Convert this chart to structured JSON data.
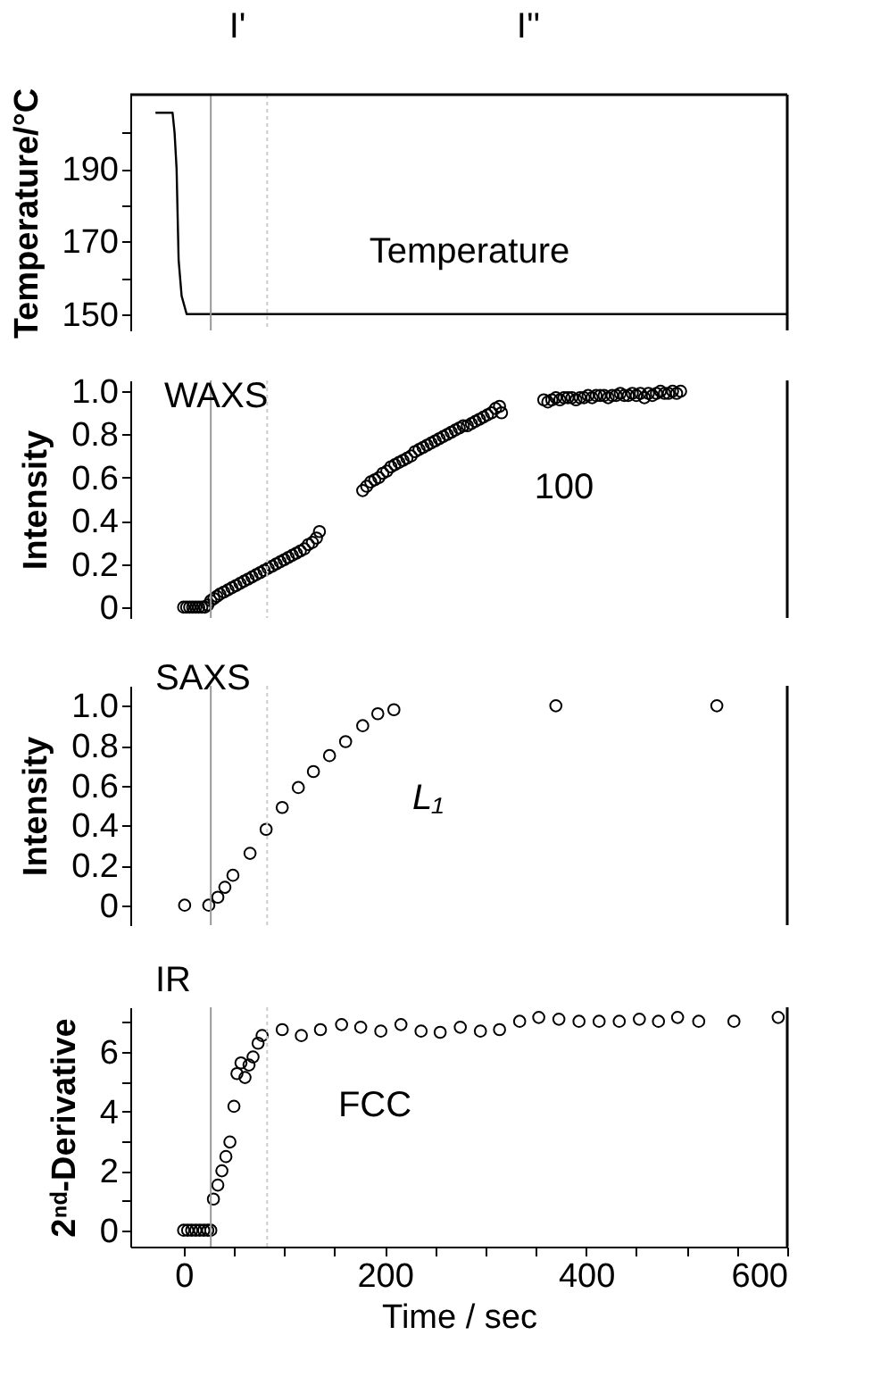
{
  "chart_data": [
    {
      "type": "line",
      "ylabel": "Temperature/°C",
      "xlim": [
        -53,
        600
      ],
      "ylim": [
        145.5,
        210.5
      ],
      "yticks": [
        150,
        {
          "value": 160,
          "label": null
        },
        170,
        {
          "value": 180,
          "label": null
        },
        190,
        {
          "value": 200,
          "label": null
        }
      ],
      "tick_labels": "y",
      "marker": "none",
      "x": [
        -28,
        -11,
        -9,
        -7,
        -5,
        -2,
        3,
        600
      ],
      "series": [
        {
          "color": "#000000",
          "values": [
            205.5,
            205.5,
            200,
            190,
            165,
            155,
            150,
            150
          ]
        }
      ],
      "ref_lines": [
        {
          "axis": "x",
          "value": 27,
          "color": "#999999",
          "line_style": "solid"
        },
        {
          "axis": "x",
          "value": 83,
          "color": "#cccccc",
          "line_style": "dotted"
        }
      ],
      "annotations": [
        "Temperature",
        "I'",
        "I''"
      ]
    },
    {
      "type": "scatter",
      "ylabel": "Intensity",
      "xlim": [
        -53,
        600
      ],
      "ylim": [
        -0.05,
        1.05
      ],
      "yticks": [
        0,
        {
          "value": 0.2,
          "label": "0.2"
        },
        {
          "value": 0.4,
          "label": "0.4"
        },
        {
          "value": 0.6,
          "label": "0.6"
        },
        {
          "value": 0.8,
          "label": "0.8"
        },
        {
          "value": 1,
          "label": "1.0"
        }
      ],
      "tick_labels": "y",
      "marker": "circle",
      "x": [
        0,
        3,
        6,
        9,
        12,
        15,
        18,
        21,
        24,
        27,
        30,
        33,
        36,
        40,
        44,
        48,
        52,
        56,
        60,
        64,
        68,
        72,
        76,
        80,
        84,
        88,
        92,
        96,
        100,
        104,
        108,
        112,
        116,
        120,
        124,
        128,
        132,
        135,
        178,
        182,
        186,
        190,
        194,
        198,
        202,
        206,
        210,
        214,
        218,
        222,
        226,
        230,
        234,
        238,
        242,
        246,
        250,
        254,
        258,
        262,
        266,
        270,
        274,
        278,
        282,
        286,
        290,
        294,
        298,
        302,
        306,
        310,
        314,
        316,
        358,
        362,
        366,
        370,
        374,
        378,
        382,
        386,
        390,
        394,
        398,
        402,
        406,
        410,
        414,
        418,
        422,
        426,
        430,
        434,
        438,
        442,
        446,
        450,
        454,
        458,
        462,
        466,
        470,
        474,
        478,
        482,
        486,
        490,
        494
      ],
      "series": [
        {
          "color": "#000000",
          "values": [
            0,
            0,
            0,
            0,
            0,
            0,
            0,
            0,
            0.01,
            0.03,
            0.04,
            0.05,
            0.06,
            0.07,
            0.08,
            0.09,
            0.1,
            0.11,
            0.12,
            0.13,
            0.14,
            0.15,
            0.16,
            0.17,
            0.18,
            0.19,
            0.2,
            0.21,
            0.22,
            0.23,
            0.24,
            0.25,
            0.26,
            0.27,
            0.29,
            0.3,
            0.32,
            0.35,
            0.54,
            0.56,
            0.58,
            0.59,
            0.6,
            0.62,
            0.63,
            0.65,
            0.66,
            0.67,
            0.68,
            0.69,
            0.7,
            0.72,
            0.73,
            0.74,
            0.75,
            0.76,
            0.77,
            0.78,
            0.79,
            0.8,
            0.81,
            0.82,
            0.83,
            0.84,
            0.84,
            0.85,
            0.86,
            0.87,
            0.88,
            0.89,
            0.9,
            0.92,
            0.93,
            0.9,
            0.96,
            0.95,
            0.96,
            0.97,
            0.96,
            0.97,
            0.97,
            0.97,
            0.96,
            0.97,
            0.97,
            0.98,
            0.97,
            0.98,
            0.98,
            0.98,
            0.97,
            0.98,
            0.98,
            0.99,
            0.98,
            0.98,
            0.99,
            0.98,
            0.99,
            0.97,
            0.99,
            0.98,
            0.99,
            1.0,
            0.99,
            0.99,
            1.0,
            0.99,
            1.0
          ]
        }
      ],
      "ref_lines": [
        {
          "axis": "x",
          "value": 27,
          "color": "#999999",
          "line_style": "solid"
        },
        {
          "axis": "x",
          "value": 83,
          "color": "#cccccc",
          "line_style": "dotted"
        }
      ],
      "annotations": [
        "WAXS",
        "100"
      ]
    },
    {
      "type": "scatter",
      "ylabel": "Intensity",
      "xlim": [
        -53,
        600
      ],
      "ylim": [
        -0.1,
        1.1
      ],
      "yticks": [
        0,
        {
          "value": 0.2,
          "label": "0.2"
        },
        {
          "value": 0.4,
          "label": "0.4"
        },
        {
          "value": 0.6,
          "label": "0.6"
        },
        {
          "value": 0.8,
          "label": "0.8"
        },
        {
          "value": 1,
          "label": "1.0"
        }
      ],
      "tick_labels": "y",
      "marker": "circle",
      "x": [
        1,
        25,
        34,
        41,
        49,
        66,
        82,
        98,
        114,
        129,
        145,
        161,
        178,
        193,
        209,
        370,
        530
      ],
      "series": [
        {
          "color": "#000000",
          "values": [
            0,
            0,
            0.04,
            0.09,
            0.15,
            0.26,
            0.38,
            0.49,
            0.59,
            0.67,
            0.75,
            0.82,
            0.9,
            0.96,
            0.98,
            1.0,
            1.0
          ]
        }
      ],
      "ref_lines": [
        {
          "axis": "x",
          "value": 27,
          "color": "#999999",
          "line_style": "solid"
        },
        {
          "axis": "x",
          "value": 83,
          "color": "#cccccc",
          "line_style": "dotted"
        }
      ],
      "annotations": [
        "SAXS",
        "L₁"
      ]
    },
    {
      "type": "scatter",
      "ylabel": "2ⁿᵈ-Derivative",
      "xlabel": "Time / sec",
      "xlim": [
        -53,
        600
      ],
      "ylim": [
        -0.55,
        7.5
      ],
      "xticks": [
        0,
        {
          "value": 50,
          "label": null
        },
        {
          "value": 100,
          "label": null
        },
        {
          "value": 150,
          "label": null
        },
        200,
        {
          "value": 250,
          "label": null
        },
        {
          "value": 300,
          "label": null
        },
        {
          "value": 350,
          "label": null
        },
        400,
        {
          "value": 450,
          "label": null
        },
        {
          "value": 500,
          "label": null
        },
        {
          "value": 550,
          "label": null
        },
        600
      ],
      "yticks": [
        0,
        {
          "value": 1,
          "label": null
        },
        2,
        {
          "value": 3,
          "label": null
        },
        4,
        {
          "value": 5,
          "label": null
        },
        6,
        {
          "value": 7,
          "label": null
        }
      ],
      "marker": "circle",
      "x": [
        0,
        4,
        8,
        12,
        16,
        20,
        24,
        27,
        29.6,
        34,
        38,
        42,
        46,
        50,
        53,
        57,
        61,
        65,
        69,
        74,
        78,
        98,
        117,
        136,
        157,
        176,
        196,
        216,
        236,
        255,
        275,
        295,
        314,
        334,
        353,
        373,
        393,
        413,
        433,
        453,
        472,
        491,
        512,
        547,
        591
      ],
      "series": [
        {
          "color": "#000000",
          "values": [
            0,
            0,
            0,
            0,
            0,
            0,
            0,
            0,
            1.05,
            1.52,
            2.0,
            2.48,
            2.97,
            4.17,
            5.27,
            5.63,
            5.14,
            5.56,
            5.83,
            6.29,
            6.55,
            6.75,
            6.55,
            6.75,
            6.92,
            6.83,
            6.7,
            6.92,
            6.7,
            6.66,
            6.83,
            6.7,
            6.75,
            7.03,
            7.16,
            7.1,
            7.03,
            7.03,
            7.03,
            7.1,
            7.03,
            7.16,
            7.03,
            7.03,
            7.16
          ]
        }
      ],
      "ref_lines": [
        {
          "axis": "x",
          "value": 27,
          "color": "#999999",
          "line_style": "solid"
        },
        {
          "axis": "x",
          "value": 83,
          "color": "#cccccc",
          "line_style": "dotted"
        }
      ],
      "annotations": [
        "IR",
        "FCC"
      ]
    }
  ]
}
